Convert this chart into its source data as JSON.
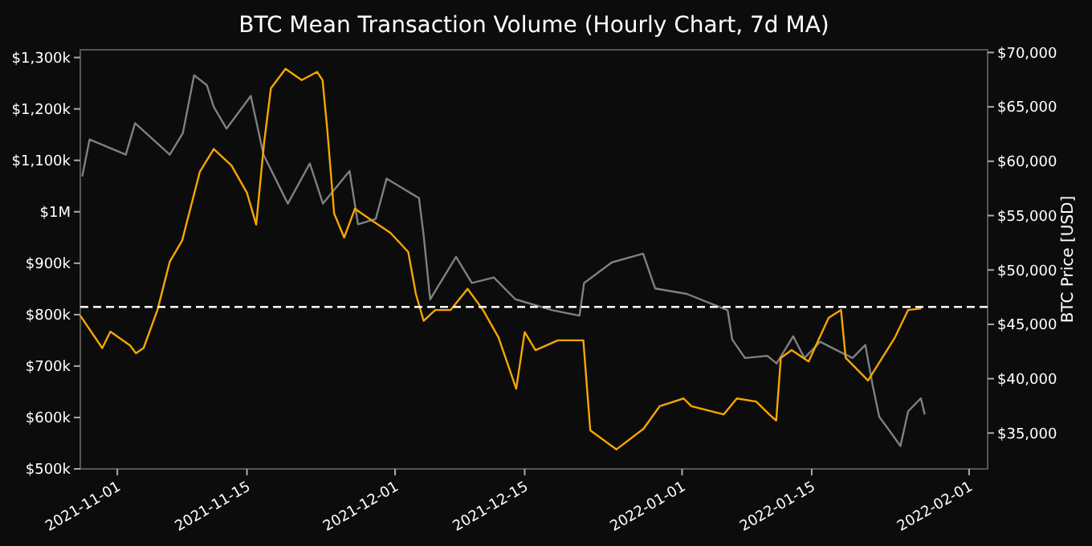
{
  "chart_data": {
    "type": "line",
    "title": "BTC Mean Transaction Volume (Hourly Chart, 7d MA)",
    "y2label": "BTC Price [USD]",
    "xlim": [
      "2021-10-28",
      "2022-02-03"
    ],
    "xticks": [
      "2021-11-01",
      "2021-11-15",
      "2021-12-01",
      "2021-12-15",
      "2022-01-01",
      "2022-01-15",
      "2022-02-01"
    ],
    "ylim": [
      500000,
      1315000
    ],
    "yticks": [
      {
        "value": 500000,
        "label": "$500k"
      },
      {
        "value": 600000,
        "label": "$600k"
      },
      {
        "value": 700000,
        "label": "$700k"
      },
      {
        "value": 800000,
        "label": "$800k"
      },
      {
        "value": 900000,
        "label": "$900k"
      },
      {
        "value": 1000000,
        "label": "$1M"
      },
      {
        "value": 1100000,
        "label": "$1,100k"
      },
      {
        "value": 1200000,
        "label": "$1,200k"
      },
      {
        "value": 1300000,
        "label": "$1,300k"
      }
    ],
    "y2lim": [
      31700,
      70250
    ],
    "y2ticks": [
      {
        "value": 35000,
        "label": "$35,000"
      },
      {
        "value": 40000,
        "label": "$40,000"
      },
      {
        "value": 45000,
        "label": "$45,000"
      },
      {
        "value": 50000,
        "label": "$50,000"
      },
      {
        "value": 55000,
        "label": "$55,000"
      },
      {
        "value": 60000,
        "label": "$60,000"
      },
      {
        "value": 65000,
        "label": "$65,000"
      },
      {
        "value": 70000,
        "label": "$70,000"
      }
    ],
    "grid": false,
    "ref_lines": [
      {
        "axis": "y",
        "value": 815000,
        "color": "#ffffff",
        "line_style": "dashed"
      }
    ],
    "series": [
      {
        "color": "#808080",
        "axis": "y2",
        "x": [
          "2021-10-28T05:00",
          "2021-10-29T00:00",
          "2021-11-01T22:00",
          "2021-11-02T22:00",
          "2021-11-06T16:00",
          "2021-11-08T02:00",
          "2021-11-09T07:00",
          "2021-11-10T16:00",
          "2021-11-11T10:00",
          "2021-11-12T19:00",
          "2021-11-15T10:00",
          "2021-11-16T19:00",
          "2021-11-19T10:00",
          "2021-11-21T19:00",
          "2021-11-23T05:00",
          "2021-11-26T02:00",
          "2021-11-27T00:00",
          "2021-11-28T22:00",
          "2021-11-30T02:00",
          "2021-12-03T14:00",
          "2021-12-04T02:00",
          "2021-12-04T19:00",
          "2021-12-07T14:00",
          "2021-12-09T07:00",
          "2021-12-11T16:00",
          "2021-12-14T00:00",
          "2021-12-18T00:00",
          "2021-12-20T22:00",
          "2021-12-21T10:00",
          "2021-12-24T10:00",
          "2021-12-27T19:00",
          "2021-12-29T02:00",
          "2022-01-01T12:00",
          "2022-01-05T22:00",
          "2022-01-06T10:00",
          "2022-01-07T19:00",
          "2022-01-10T05:00",
          "2022-01-11T05:00",
          "2022-01-13T00:00",
          "2022-01-14T05:00",
          "2022-01-15T22:00",
          "2022-01-18T05:00",
          "2022-01-19T10:00",
          "2022-01-20T19:00",
          "2022-01-21T14:00",
          "2022-01-22T07:00",
          "2022-01-23T10:00",
          "2022-01-24T14:00",
          "2022-01-25T10:00",
          "2022-01-26T19:00",
          "2022-01-27T05:00"
        ],
        "values": [
          58600,
          62000,
          60600,
          63500,
          60600,
          62600,
          67900,
          67000,
          65000,
          63000,
          66000,
          60600,
          56100,
          59800,
          56100,
          59100,
          54200,
          54700,
          58400,
          56600,
          53200,
          47300,
          51200,
          48800,
          49300,
          47300,
          46300,
          45800,
          48800,
          50700,
          51500,
          48300,
          47800,
          46300,
          43600,
          41900,
          42100,
          41400,
          43900,
          41900,
          43400,
          42400,
          41900,
          43100,
          39400,
          36500,
          35200,
          33800,
          37000,
          38200,
          36700
        ]
      },
      {
        "color": "#f7a600",
        "x": [
          "2021-10-28T00:00",
          "2021-10-30T09:00",
          "2021-10-31T06:00",
          "2021-11-02T09:00",
          "2021-11-03T00:00",
          "2021-11-03T20:00",
          "2021-11-05T08:00",
          "2021-11-06T16:00",
          "2021-11-08T00:00",
          "2021-11-09T22:00",
          "2021-11-11T10:00",
          "2021-11-13T08:00",
          "2021-11-15T00:00",
          "2021-11-16T00:00",
          "2021-11-16T20:00",
          "2021-11-17T14:00",
          "2021-11-19T04:00",
          "2021-11-20T22:00",
          "2021-11-22T14:00",
          "2021-11-23T04:00",
          "2021-11-23T16:00",
          "2021-11-24T10:00",
          "2021-11-25T12:00",
          "2021-11-26T16:00",
          "2021-11-28T10:00",
          "2021-11-30T12:00",
          "2021-12-02T10:00",
          "2021-12-03T06:00",
          "2021-12-04T02:00",
          "2021-12-05T08:00",
          "2021-12-07T00:00",
          "2021-12-08T20:00",
          "2021-12-10T12:00",
          "2021-12-12T04:00",
          "2021-12-14T02:00",
          "2021-12-15T00:00",
          "2021-12-16T04:00",
          "2021-12-18T14:00",
          "2021-12-21T08:00",
          "2021-12-22T02:00",
          "2021-12-24T22:00",
          "2021-12-27T20:00",
          "2021-12-29T14:00",
          "2022-01-01T04:00",
          "2022-01-02T00:00",
          "2022-01-05T12:00",
          "2022-01-06T22:00",
          "2022-01-09T00:00",
          "2022-01-10T10:00",
          "2022-01-11T04:00",
          "2022-01-11T16:00",
          "2022-01-12T20:00",
          "2022-01-14T16:00",
          "2022-01-16T20:00",
          "2022-01-18T04:00",
          "2022-01-18T16:00",
          "2022-01-21T02:00",
          "2022-01-24T00:00",
          "2022-01-25T10:00",
          "2022-01-26T20:00"
        ],
        "values": [
          798000,
          735000,
          767000,
          740000,
          725000,
          735000,
          809000,
          903000,
          944000,
          1078000,
          1122000,
          1090000,
          1037000,
          975000,
          1131000,
          1240000,
          1278000,
          1256000,
          1272000,
          1256000,
          1162000,
          997000,
          950000,
          1006000,
          984000,
          959000,
          922000,
          840000,
          788000,
          809000,
          809000,
          850000,
          809000,
          756000,
          656000,
          766000,
          731000,
          750000,
          750000,
          575000,
          538000,
          578000,
          622000,
          637000,
          622000,
          606000,
          637000,
          631000,
          606000,
          594000,
          716000,
          731000,
          709000,
          794000,
          809000,
          716000,
          672000,
          756000,
          809000,
          812000
        ]
      }
    ]
  }
}
